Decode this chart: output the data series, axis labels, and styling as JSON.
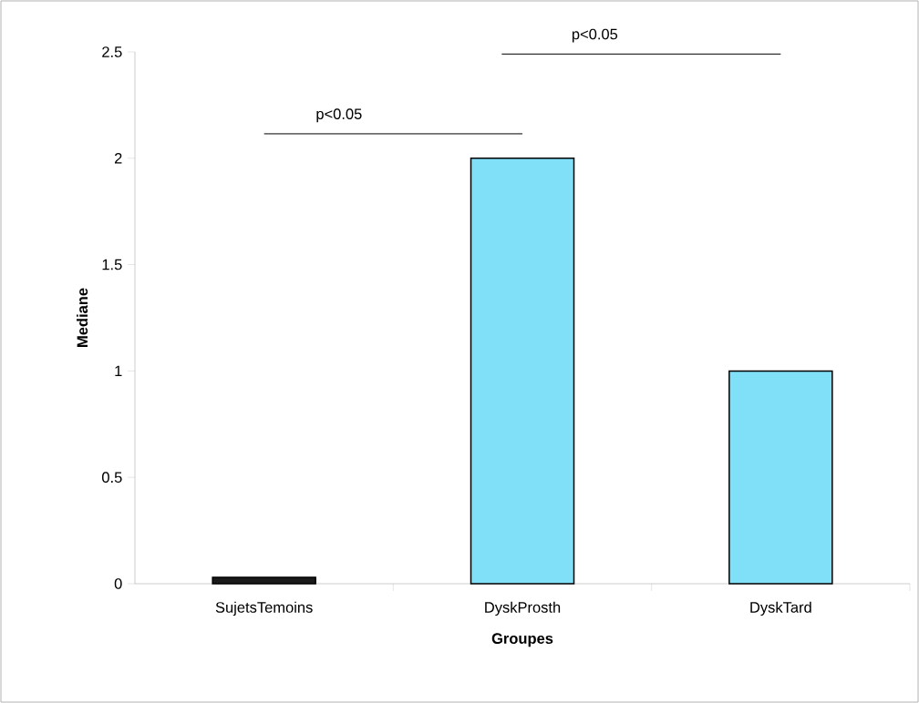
{
  "chart_data": {
    "type": "bar",
    "xlabel": "Groupes",
    "ylabel": "Mediane",
    "categories": [
      "SujetsTemoins",
      "DyskProsth",
      "DyskTard"
    ],
    "values": [
      0.03,
      2,
      1
    ],
    "colors": [
      "#1a1a1a",
      "#80e0f8",
      "#80e0f8"
    ],
    "ylim": [
      0,
      2.5
    ],
    "yticks": [
      0,
      0.5,
      1,
      1.5,
      2,
      2.5
    ],
    "grid": false,
    "annotations": [
      "p<0.05",
      "p<0.05"
    ]
  }
}
